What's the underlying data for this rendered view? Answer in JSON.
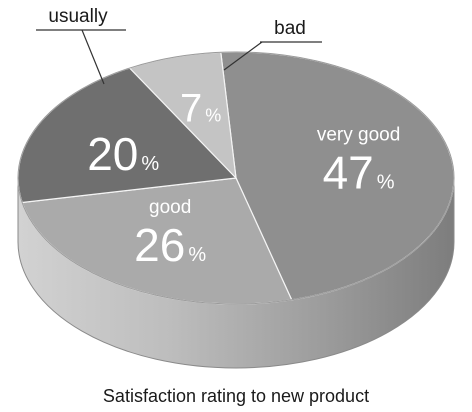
{
  "chart_data": {
    "type": "pie",
    "title": "Satisfaction rating to new product",
    "slices": [
      {
        "label": "very good",
        "value": 47,
        "value_label": "47",
        "color": "#8f8f8f"
      },
      {
        "label": "good",
        "value": 26,
        "value_label": "26",
        "color": "#aaaaaa"
      },
      {
        "label": "usually",
        "value": 20,
        "value_label": "20",
        "color": "#6f6f6f"
      },
      {
        "label": "bad",
        "value": 7,
        "value_label": "7",
        "color": "#c4c4c4"
      }
    ],
    "percent_sign": "%",
    "style": "3d"
  }
}
